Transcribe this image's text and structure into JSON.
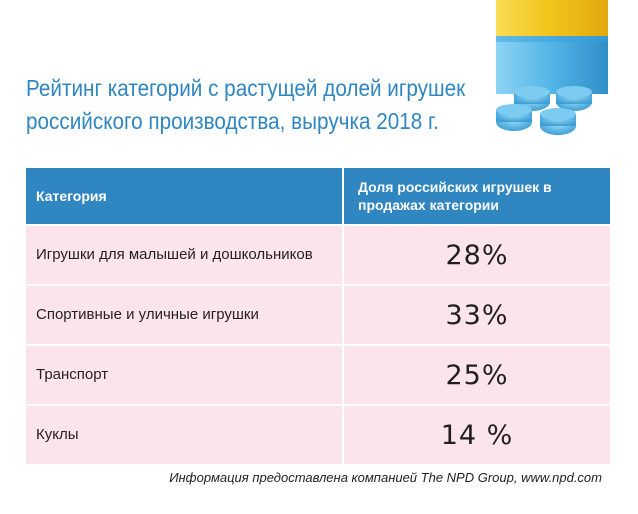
{
  "title": {
    "line1": "Рейтинг категорий с растущей долей игрушек",
    "line2": "российского производства, выручка 2018 г."
  },
  "table": {
    "header_category": "Категория",
    "header_share": "Доля российских игрушек в продажах категории",
    "rows": [
      {
        "category": "Игрушки для малышей и дошкольников",
        "share": "28%"
      },
      {
        "category": "Спортивные и уличные игрушки",
        "share": "33%"
      },
      {
        "category": "Транспорт",
        "share": "25%"
      },
      {
        "category": "Куклы",
        "share": "14 %"
      }
    ]
  },
  "source": "Информация предоставлена компанией The NPD Group, www.npd.com",
  "colors": {
    "accent": "#2f86c1",
    "row_background": "#fbe4ec",
    "brick_yellow": "#f5cf2a",
    "brick_blue": "#52b4e6"
  },
  "icons": [
    "toy-brick-icon"
  ],
  "chart_data": {
    "type": "table",
    "title": "Рейтинг категорий с растущей долей игрушек российского производства, выручка 2018 г.",
    "columns": [
      "Категория",
      "Доля российских игрушек в продажах категории"
    ],
    "categories": [
      "Игрушки для малышей и дошкольников",
      "Спортивные и уличные игрушки",
      "Транспорт",
      "Куклы"
    ],
    "values": [
      28,
      33,
      25,
      14
    ],
    "unit": "%"
  }
}
